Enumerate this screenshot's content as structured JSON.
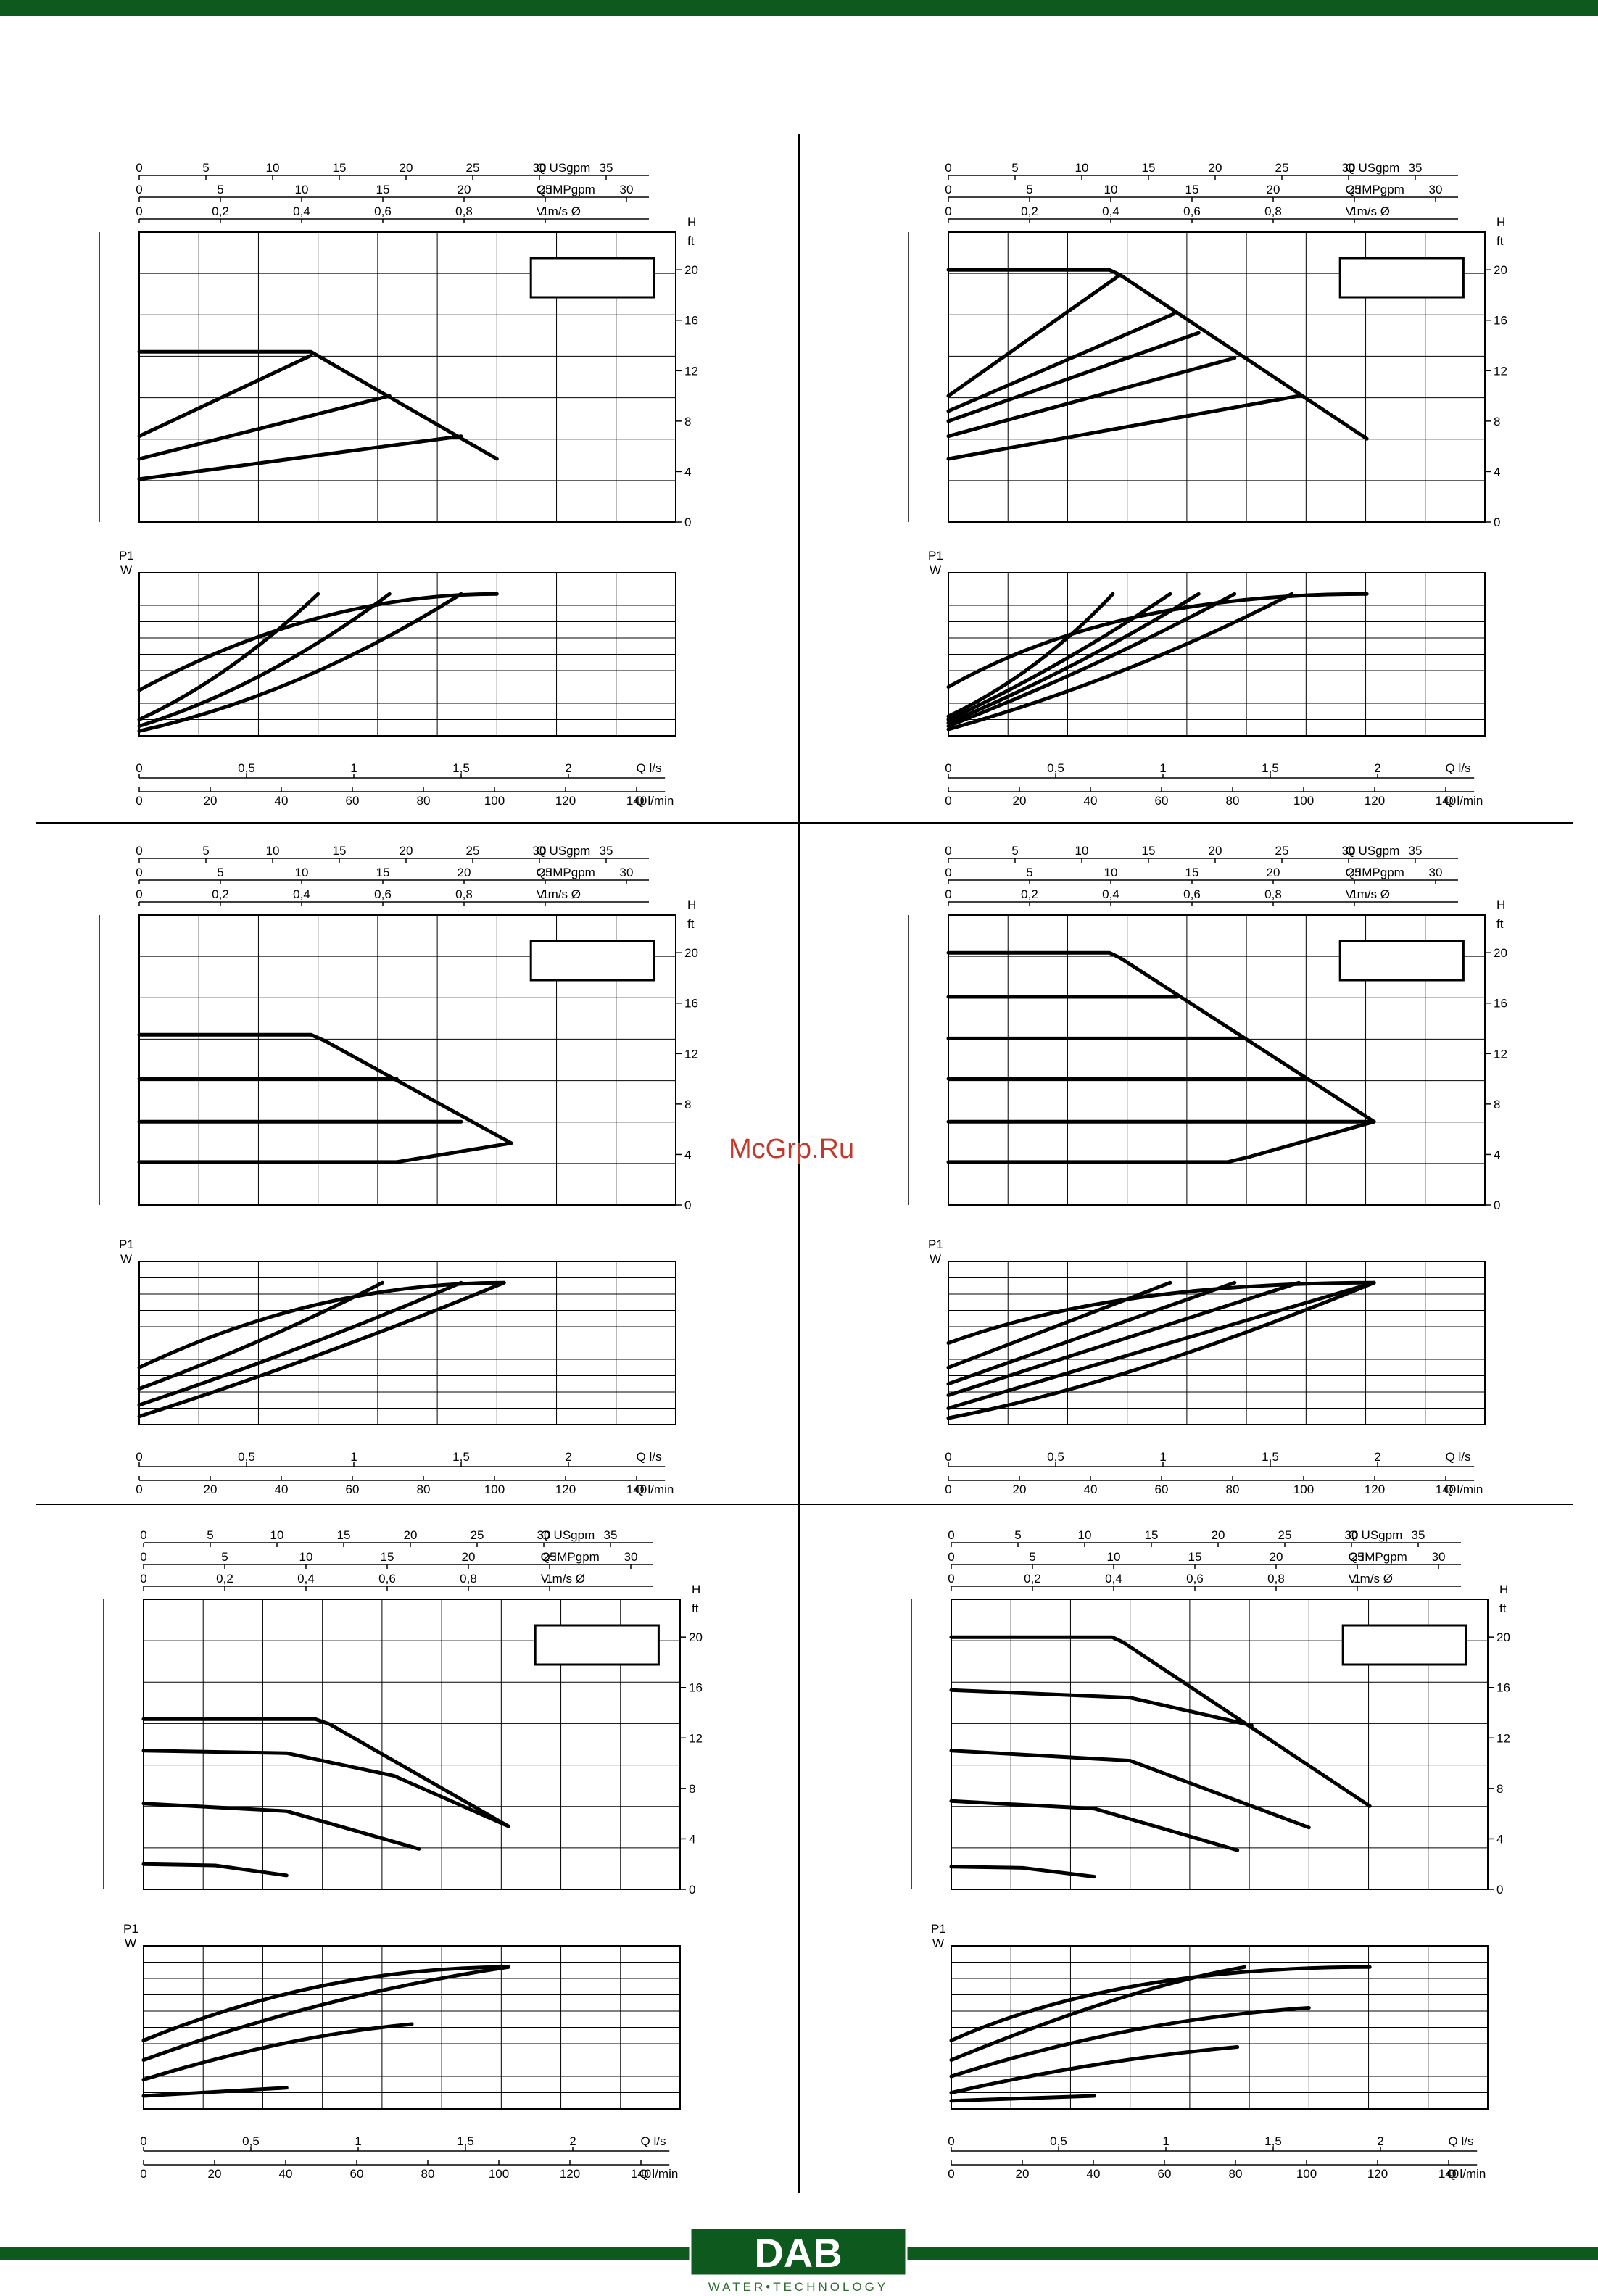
{
  "brand": {
    "name": "DAB",
    "subtitle": "WATER•TECHNOLOGY",
    "color": "#0e5a1e",
    "watermark": "McGrp.Ru",
    "watermark_color": "#c0392b"
  },
  "axis_labels": {
    "usgpm": "Q USgpm",
    "impgpm": "Q IMPgpm",
    "velocity": "V m/s Ø",
    "head_unit_h": "H",
    "head_unit_ft": "ft",
    "power_p1": "P1",
    "power_w": "W",
    "flow_ls": "Q l/s",
    "flow_lmin": "Q l/min"
  },
  "ticks": {
    "usgpm": [
      "0",
      "5",
      "10",
      "15",
      "20",
      "25",
      "30",
      "35"
    ],
    "impgpm": [
      "0",
      "5",
      "10",
      "15",
      "20",
      "25",
      "30"
    ],
    "velocity": [
      "0",
      "0,2",
      "0,4",
      "0,6",
      "0,8",
      "1"
    ],
    "head": [
      "0",
      "4",
      "8",
      "12",
      "16",
      "20"
    ],
    "ls": [
      "0",
      "0,5",
      "1",
      "1,5",
      "2"
    ],
    "lmin": [
      "0",
      "20",
      "40",
      "60",
      "80",
      "100",
      "120",
      "140"
    ]
  },
  "chart_data": [
    {
      "type": "line",
      "title": "",
      "xlabel": "Q l/min",
      "ylabel": "H ft",
      "xlim": [
        0,
        150
      ],
      "ylim": [
        0,
        23
      ],
      "series": [
        {
          "name": "max",
          "points": [
            [
              0,
              13.5
            ],
            [
              48,
              13.5
            ],
            [
              100,
              5
            ]
          ]
        },
        {
          "name": "c1",
          "points": [
            [
              0,
              6.8
            ],
            [
              48,
              13.2
            ]
          ]
        },
        {
          "name": "c2",
          "points": [
            [
              0,
              5
            ],
            [
              70,
              10
            ]
          ]
        },
        {
          "name": "c3",
          "points": [
            [
              0,
              3.4
            ],
            [
              90,
              6.8
            ]
          ]
        }
      ],
      "power": {
        "ylabel": "P1 W",
        "series": [
          {
            "name": "p1",
            "points": [
              [
                0,
                0.28
              ],
              [
                50,
                0.87
              ],
              [
                100,
                0.87
              ]
            ]
          },
          {
            "name": "p2",
            "points": [
              [
                0,
                0.1
              ],
              [
                25,
                0.35
              ],
              [
                50,
                0.87
              ]
            ]
          },
          {
            "name": "p3",
            "points": [
              [
                0,
                0.06
              ],
              [
                35,
                0.3
              ],
              [
                70,
                0.87
              ]
            ]
          },
          {
            "name": "p4",
            "points": [
              [
                0,
                0.03
              ],
              [
                45,
                0.25
              ],
              [
                90,
                0.87
              ]
            ]
          }
        ]
      }
    },
    {
      "type": "line",
      "title": "",
      "xlabel": "Q l/min",
      "ylabel": "H ft",
      "xlim": [
        0,
        150
      ],
      "ylim": [
        0,
        23
      ],
      "series": [
        {
          "name": "max",
          "points": [
            [
              0,
              20
            ],
            [
              45,
              20
            ],
            [
              48,
              19.6
            ],
            [
              117,
              6.6
            ]
          ]
        },
        {
          "name": "c1",
          "points": [
            [
              0,
              10
            ],
            [
              48,
              19.6
            ]
          ]
        },
        {
          "name": "c2",
          "points": [
            [
              0,
              8.8
            ],
            [
              63,
              16.5
            ]
          ]
        },
        {
          "name": "c3",
          "points": [
            [
              0,
              8.0
            ],
            [
              70,
              15
            ]
          ]
        },
        {
          "name": "c4",
          "points": [
            [
              0,
              6.8
            ],
            [
              80,
              13
            ]
          ]
        },
        {
          "name": "c5",
          "points": [
            [
              0,
              5
            ],
            [
              98,
              10
            ]
          ]
        }
      ],
      "power": {
        "ylabel": "P1 W",
        "series": [
          {
            "name": "p1",
            "points": [
              [
                0,
                0.3
              ],
              [
                46,
                0.87
              ],
              [
                117,
                0.87
              ]
            ]
          },
          {
            "name": "p2",
            "points": [
              [
                0,
                0.12
              ],
              [
                25,
                0.38
              ],
              [
                46,
                0.87
              ]
            ]
          },
          {
            "name": "p3",
            "points": [
              [
                0,
                0.1
              ],
              [
                30,
                0.4
              ],
              [
                62,
                0.87
              ]
            ]
          },
          {
            "name": "p4",
            "points": [
              [
                0,
                0.08
              ],
              [
                35,
                0.4
              ],
              [
                70,
                0.87
              ]
            ]
          },
          {
            "name": "p5",
            "points": [
              [
                0,
                0.06
              ],
              [
                40,
                0.4
              ],
              [
                80,
                0.87
              ]
            ]
          },
          {
            "name": "p6",
            "points": [
              [
                0,
                0.04
              ],
              [
                50,
                0.35
              ],
              [
                96,
                0.87
              ]
            ]
          }
        ]
      }
    },
    {
      "type": "line",
      "title": "",
      "xlabel": "Q l/min",
      "ylabel": "H ft",
      "xlim": [
        0,
        150
      ],
      "ylim": [
        0,
        23
      ],
      "series": [
        {
          "name": "max",
          "points": [
            [
              0,
              13.5
            ],
            [
              48,
              13.5
            ],
            [
              52,
              13
            ],
            [
              104,
              4.9
            ],
            [
              72,
              3.4
            ]
          ]
        },
        {
          "name": "c1",
          "points": [
            [
              0,
              10
            ],
            [
              72,
              10
            ]
          ]
        },
        {
          "name": "c2",
          "points": [
            [
              0,
              6.6
            ],
            [
              90,
              6.6
            ]
          ]
        },
        {
          "name": "c3",
          "points": [
            [
              0,
              3.4
            ],
            [
              72,
              3.4
            ]
          ]
        }
      ],
      "power": {
        "ylabel": "P1 W",
        "series": [
          {
            "name": "p1",
            "points": [
              [
                0,
                0.35
              ],
              [
                50,
                0.87
              ],
              [
                102,
                0.87
              ]
            ]
          },
          {
            "name": "p2",
            "points": [
              [
                0,
                0.22
              ],
              [
                35,
                0.5
              ],
              [
                68,
                0.87
              ]
            ]
          },
          {
            "name": "p3",
            "points": [
              [
                0,
                0.12
              ],
              [
                45,
                0.45
              ],
              [
                90,
                0.87
              ]
            ]
          },
          {
            "name": "p4",
            "points": [
              [
                0,
                0.05
              ],
              [
                50,
                0.4
              ],
              [
                102,
                0.87
              ]
            ]
          }
        ]
      }
    },
    {
      "type": "line",
      "title": "",
      "xlabel": "Q l/min",
      "ylabel": "H ft",
      "xlim": [
        0,
        150
      ],
      "ylim": [
        0,
        23
      ],
      "series": [
        {
          "name": "max",
          "points": [
            [
              0,
              20
            ],
            [
              45,
              20
            ],
            [
              48,
              19.6
            ],
            [
              119,
              6.6
            ]
          ]
        },
        {
          "name": "c1",
          "points": [
            [
              0,
              16.5
            ],
            [
              64,
              16.5
            ]
          ]
        },
        {
          "name": "c2",
          "points": [
            [
              0,
              13.2
            ],
            [
              82,
              13.2
            ]
          ]
        },
        {
          "name": "c3",
          "points": [
            [
              0,
              10
            ],
            [
              100,
              10
            ]
          ]
        },
        {
          "name": "c4",
          "points": [
            [
              0,
              6.6
            ],
            [
              119,
              6.6
            ]
          ]
        },
        {
          "name": "c5",
          "points": [
            [
              0,
              3.4
            ],
            [
              78,
              3.4
            ],
            [
              84,
              3.8
            ],
            [
              119,
              6.6
            ]
          ]
        }
      ],
      "power": {
        "ylabel": "P1 W",
        "series": [
          {
            "name": "p1",
            "points": [
              [
                0,
                0.5
              ],
              [
                46,
                0.87
              ],
              [
                119,
                0.87
              ]
            ]
          },
          {
            "name": "p2",
            "points": [
              [
                0,
                0.35
              ],
              [
                62,
                0.87
              ]
            ]
          },
          {
            "name": "p3",
            "points": [
              [
                0,
                0.25
              ],
              [
                80,
                0.87
              ]
            ]
          },
          {
            "name": "p4",
            "points": [
              [
                0,
                0.18
              ],
              [
                98,
                0.87
              ]
            ]
          },
          {
            "name": "p5",
            "points": [
              [
                0,
                0.1
              ],
              [
                119,
                0.87
              ]
            ]
          },
          {
            "name": "p6",
            "points": [
              [
                0,
                0.04
              ],
              [
                50,
                0.25
              ],
              [
                119,
                0.87
              ]
            ]
          }
        ]
      }
    },
    {
      "type": "line",
      "title": "",
      "xlabel": "Q l/min",
      "ylabel": "H ft",
      "xlim": [
        0,
        150
      ],
      "ylim": [
        0,
        23
      ],
      "series": [
        {
          "name": "max",
          "points": [
            [
              0,
              13.5
            ],
            [
              48,
              13.5
            ],
            [
              52,
              13.1
            ],
            [
              102,
              5
            ]
          ]
        },
        {
          "name": "c1",
          "points": [
            [
              0,
              11
            ],
            [
              40,
              10.8
            ],
            [
              70,
              9
            ],
            [
              102,
              5
            ]
          ]
        },
        {
          "name": "c2",
          "points": [
            [
              0,
              6.8
            ],
            [
              40,
              6.2
            ],
            [
              77,
              3.2
            ]
          ]
        },
        {
          "name": "c3",
          "points": [
            [
              0,
              2
            ],
            [
              20,
              1.9
            ],
            [
              40,
              1.1
            ]
          ]
        }
      ],
      "power": {
        "ylabel": "P1 W",
        "series": [
          {
            "name": "p1",
            "points": [
              [
                0,
                0.42
              ],
              [
                50,
                0.87
              ],
              [
                102,
                0.87
              ]
            ]
          },
          {
            "name": "p2",
            "points": [
              [
                0,
                0.3
              ],
              [
                50,
                0.7
              ],
              [
                102,
                0.87
              ]
            ]
          },
          {
            "name": "p3",
            "points": [
              [
                0,
                0.18
              ],
              [
                40,
                0.45
              ],
              [
                75,
                0.52
              ]
            ]
          },
          {
            "name": "p4",
            "points": [
              [
                0,
                0.08
              ],
              [
                40,
                0.13
              ]
            ]
          }
        ]
      }
    },
    {
      "type": "line",
      "title": "",
      "xlabel": "Q l/min",
      "ylabel": "H ft",
      "xlim": [
        0,
        150
      ],
      "ylim": [
        0,
        23
      ],
      "series": [
        {
          "name": "max",
          "points": [
            [
              0,
              20
            ],
            [
              45,
              20
            ],
            [
              48,
              19.6
            ],
            [
              117,
              6.6
            ]
          ]
        },
        {
          "name": "c1",
          "points": [
            [
              0,
              15.8
            ],
            [
              50,
              15.2
            ],
            [
              84,
              13
            ]
          ]
        },
        {
          "name": "c2",
          "points": [
            [
              0,
              11
            ],
            [
              50,
              10.2
            ],
            [
              100,
              4.9
            ]
          ]
        },
        {
          "name": "c3",
          "points": [
            [
              0,
              7
            ],
            [
              40,
              6.4
            ],
            [
              80,
              3.1
            ]
          ]
        },
        {
          "name": "c4",
          "points": [
            [
              0,
              1.8
            ],
            [
              20,
              1.7
            ],
            [
              40,
              1.0
            ]
          ]
        }
      ],
      "power": {
        "ylabel": "P1 W",
        "series": [
          {
            "name": "p1",
            "points": [
              [
                0,
                0.42
              ],
              [
                46,
                0.87
              ],
              [
                117,
                0.87
              ]
            ]
          },
          {
            "name": "p2",
            "points": [
              [
                0,
                0.3
              ],
              [
                50,
                0.75
              ],
              [
                82,
                0.87
              ]
            ]
          },
          {
            "name": "p3",
            "points": [
              [
                0,
                0.2
              ],
              [
                50,
                0.55
              ],
              [
                100,
                0.62
              ]
            ]
          },
          {
            "name": "p4",
            "points": [
              [
                0,
                0.1
              ],
              [
                40,
                0.3
              ],
              [
                80,
                0.38
              ]
            ]
          },
          {
            "name": "p5",
            "points": [
              [
                0,
                0.05
              ],
              [
                40,
                0.08
              ]
            ]
          }
        ]
      }
    }
  ]
}
